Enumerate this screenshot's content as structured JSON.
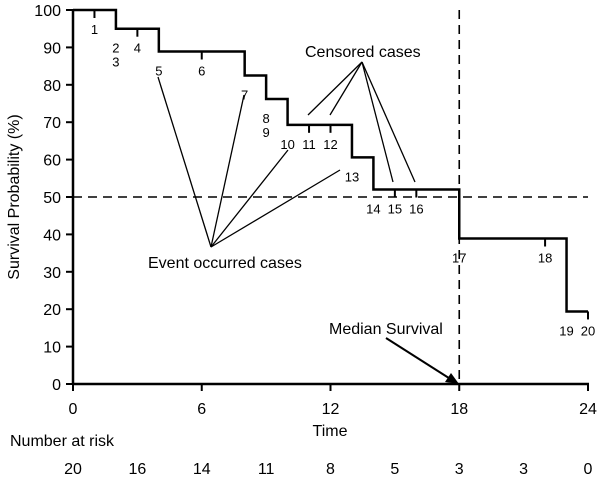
{
  "chart_data": {
    "type": "line",
    "subtype": "kaplan-meier-step",
    "xlabel": "Time",
    "ylabel": "Survival Probability (%)",
    "xlim": [
      0,
      24
    ],
    "ylim": [
      0,
      100
    ],
    "xticks": [
      0,
      6,
      12,
      18,
      24
    ],
    "yticks": [
      0,
      10,
      20,
      30,
      40,
      50,
      60,
      70,
      80,
      90,
      100
    ],
    "grid": false,
    "steps": [
      {
        "x": 0,
        "y": 100
      },
      {
        "x": 2,
        "y": 95
      },
      {
        "x": 4,
        "y": 88.9
      },
      {
        "x": 8,
        "y": 82.5
      },
      {
        "x": 9,
        "y": 76.2
      },
      {
        "x": 10,
        "y": 69.3
      },
      {
        "x": 13,
        "y": 60.6
      },
      {
        "x": 14,
        "y": 52
      },
      {
        "x": 18,
        "y": 38.9
      },
      {
        "x": 23,
        "y": 19.4
      },
      {
        "x": 24,
        "y": 19.4
      }
    ],
    "censored": [
      {
        "x": 1,
        "label": "1"
      },
      {
        "x": 3,
        "label": "4"
      },
      {
        "x": 6,
        "label": "6"
      },
      {
        "x": 11,
        "label": "11"
      },
      {
        "x": 12,
        "label": "12"
      },
      {
        "x": 15,
        "label": "15"
      },
      {
        "x": 16,
        "label": "16"
      },
      {
        "x": 22,
        "label": "18"
      },
      {
        "x": 24,
        "label": "20"
      }
    ],
    "events": [
      {
        "x": 2,
        "label": "2\n3"
      },
      {
        "x": 4,
        "label": "5"
      },
      {
        "x": 8,
        "label": "7"
      },
      {
        "x": 9,
        "label": "8\n9"
      },
      {
        "x": 10,
        "label": "10"
      },
      {
        "x": 13,
        "label": "13"
      },
      {
        "x": 14,
        "label": "14"
      },
      {
        "x": 18,
        "label": "17"
      },
      {
        "x": 23,
        "label": "19"
      }
    ],
    "reference_lines": {
      "median_y": 50,
      "median_x": 18
    },
    "annotations": {
      "censored": "Censored cases",
      "event": "Event occurred cases",
      "median": "Median Survival"
    },
    "risk_table": {
      "title": "Number at risk",
      "times": [
        0,
        3,
        6,
        9,
        12,
        15,
        18,
        21,
        24
      ],
      "values": [
        "20",
        "16",
        "14",
        "11",
        "8",
        "5",
        "3",
        "3",
        "0"
      ]
    }
  }
}
